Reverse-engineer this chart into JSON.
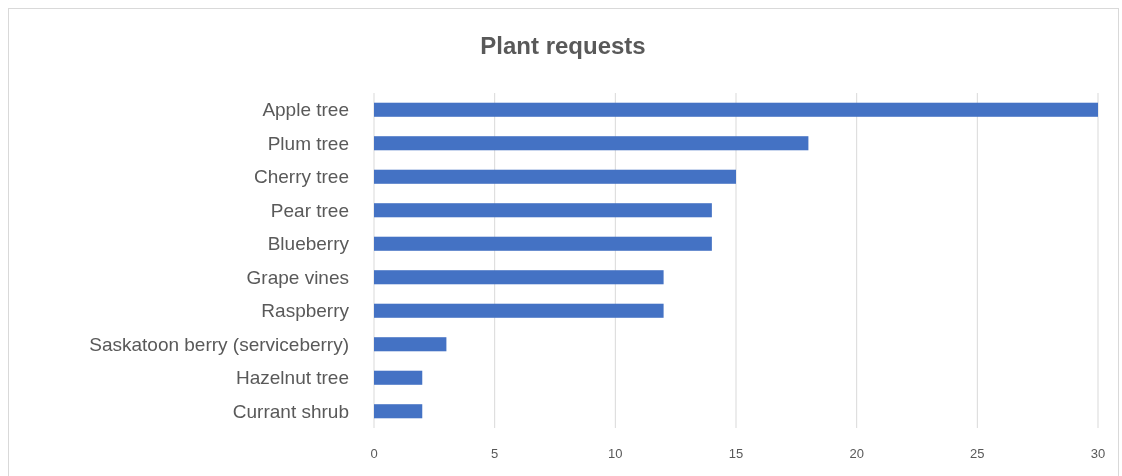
{
  "chart_data": {
    "type": "bar",
    "orientation": "horizontal",
    "title": "Plant requests",
    "categories": [
      "Apple tree",
      "Plum tree",
      "Cherry tree",
      "Pear tree",
      "Blueberry",
      "Grape vines",
      "Raspberry",
      "Saskatoon berry (serviceberry)",
      "Hazelnut tree",
      "Currant shrub"
    ],
    "values": [
      30,
      18,
      15,
      14,
      14,
      12,
      12,
      3,
      2,
      2
    ],
    "color": "#4472c4",
    "xlim": [
      0,
      30
    ],
    "xticks": [
      0,
      5,
      10,
      15,
      20,
      25,
      30
    ],
    "grid": "x"
  }
}
